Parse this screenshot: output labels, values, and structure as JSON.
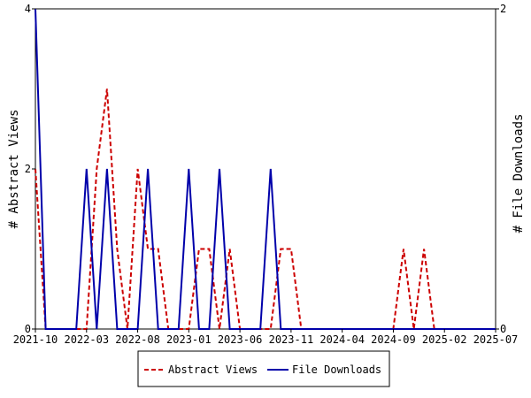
{
  "chart_data": {
    "type": "line",
    "x_ticks": [
      "2021-10",
      "2022-03",
      "2022-08",
      "2023-01",
      "2023-06",
      "2023-11",
      "2024-04",
      "2024-09",
      "2025-02",
      "2025-07"
    ],
    "x_range": [
      "2021-10",
      "2025-07"
    ],
    "y_left": {
      "label": "# Abstract Views",
      "ticks": [
        "0",
        "2",
        "4"
      ],
      "range": [
        0,
        4
      ]
    },
    "y_right": {
      "label": "# File Downloads",
      "ticks": [
        "0",
        "2"
      ],
      "range": [
        0,
        2
      ]
    },
    "grid": false,
    "legend_position": "bottom",
    "series": [
      {
        "name": "Abstract Views",
        "axis": "left",
        "color": "#cc0000",
        "dash": true,
        "points": [
          [
            "2021-10",
            2
          ],
          [
            "2021-11",
            0
          ],
          [
            "2021-12",
            0
          ],
          [
            "2022-01",
            0
          ],
          [
            "2022-02",
            0
          ],
          [
            "2022-03",
            0
          ],
          [
            "2022-04",
            2
          ],
          [
            "2022-05",
            3
          ],
          [
            "2022-06",
            1
          ],
          [
            "2022-07",
            0
          ],
          [
            "2022-08",
            2
          ],
          [
            "2022-09",
            1
          ],
          [
            "2022-10",
            1
          ],
          [
            "2022-11",
            0
          ],
          [
            "2022-12",
            0
          ],
          [
            "2023-01",
            0
          ],
          [
            "2023-02",
            1
          ],
          [
            "2023-03",
            1
          ],
          [
            "2023-04",
            0
          ],
          [
            "2023-05",
            1
          ],
          [
            "2023-06",
            0
          ],
          [
            "2023-07",
            0
          ],
          [
            "2023-08",
            0
          ],
          [
            "2023-09",
            0
          ],
          [
            "2023-10",
            1
          ],
          [
            "2023-11",
            1
          ],
          [
            "2023-12",
            0
          ],
          [
            "2024-01",
            0
          ],
          [
            "2024-02",
            0
          ],
          [
            "2024-03",
            0
          ],
          [
            "2024-04",
            0
          ],
          [
            "2024-05",
            0
          ],
          [
            "2024-06",
            0
          ],
          [
            "2024-07",
            0
          ],
          [
            "2024-08",
            0
          ],
          [
            "2024-09",
            0
          ],
          [
            "2024-10",
            1
          ],
          [
            "2024-11",
            0
          ],
          [
            "2024-12",
            1
          ],
          [
            "2025-01",
            0
          ],
          [
            "2025-02",
            0
          ],
          [
            "2025-03",
            0
          ],
          [
            "2025-04",
            0
          ],
          [
            "2025-05",
            0
          ],
          [
            "2025-06",
            0
          ],
          [
            "2025-07",
            0
          ]
        ]
      },
      {
        "name": "File Downloads",
        "axis": "right",
        "color": "#0000aa",
        "dash": false,
        "points": [
          [
            "2021-10",
            2
          ],
          [
            "2021-11",
            0
          ],
          [
            "2021-12",
            0
          ],
          [
            "2022-01",
            0
          ],
          [
            "2022-02",
            0
          ],
          [
            "2022-03",
            1
          ],
          [
            "2022-04",
            0
          ],
          [
            "2022-05",
            1
          ],
          [
            "2022-06",
            0
          ],
          [
            "2022-07",
            0
          ],
          [
            "2022-08",
            0
          ],
          [
            "2022-09",
            1
          ],
          [
            "2022-10",
            0
          ],
          [
            "2022-11",
            0
          ],
          [
            "2022-12",
            0
          ],
          [
            "2023-01",
            1
          ],
          [
            "2023-02",
            0
          ],
          [
            "2023-03",
            0
          ],
          [
            "2023-04",
            1
          ],
          [
            "2023-05",
            0
          ],
          [
            "2023-06",
            0
          ],
          [
            "2023-07",
            0
          ],
          [
            "2023-08",
            0
          ],
          [
            "2023-09",
            1
          ],
          [
            "2023-10",
            0
          ],
          [
            "2023-11",
            0
          ],
          [
            "2023-12",
            0
          ],
          [
            "2024-01",
            0
          ],
          [
            "2024-02",
            0
          ],
          [
            "2024-03",
            0
          ],
          [
            "2024-04",
            0
          ],
          [
            "2024-05",
            0
          ],
          [
            "2024-06",
            0
          ],
          [
            "2024-07",
            0
          ],
          [
            "2024-08",
            0
          ],
          [
            "2024-09",
            0
          ],
          [
            "2024-10",
            0
          ],
          [
            "2024-11",
            0
          ],
          [
            "2024-12",
            0
          ],
          [
            "2025-01",
            0
          ],
          [
            "2025-02",
            0
          ],
          [
            "2025-03",
            0
          ],
          [
            "2025-04",
            0
          ],
          [
            "2025-05",
            0
          ],
          [
            "2025-06",
            0
          ],
          [
            "2025-07",
            0
          ]
        ]
      }
    ]
  }
}
